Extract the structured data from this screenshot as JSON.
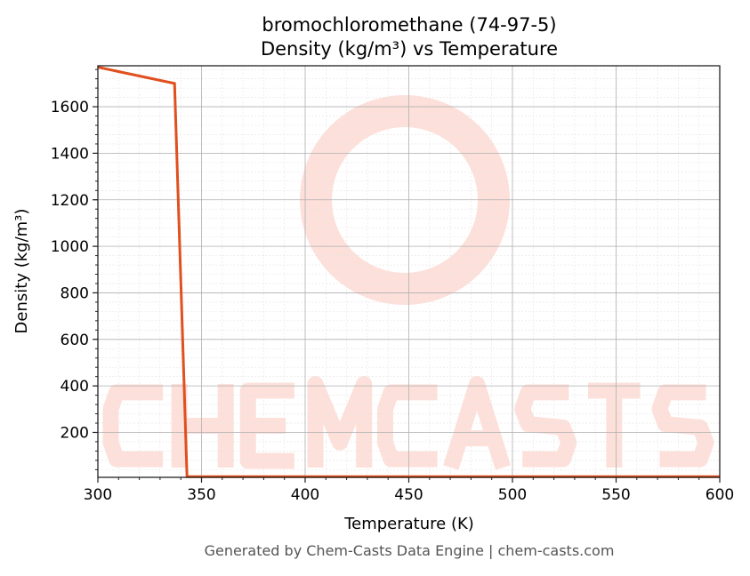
{
  "chart_data": {
    "type": "line",
    "title": "bromochloromethane (74-97-5)",
    "subtitle": "Density (kg/m³) vs Temperature",
    "xlabel": "Temperature (K)",
    "ylabel": "Density (kg/m³)",
    "xlim": [
      300,
      600
    ],
    "ylim": [
      7,
      1776
    ],
    "xticks": [
      300,
      350,
      400,
      450,
      500,
      550,
      600
    ],
    "yticks": [
      200,
      400,
      600,
      800,
      1000,
      1200,
      1400,
      1600
    ],
    "grid": true,
    "series": [
      {
        "x": [
          300,
          337,
          343,
          600
        ],
        "y": [
          1770,
          1700,
          10,
          10
        ],
        "color": "#e0501e"
      }
    ],
    "watermark": "CHEMCASTS"
  },
  "footer": "Generated by Chem-Casts Data Engine | chem-casts.com"
}
